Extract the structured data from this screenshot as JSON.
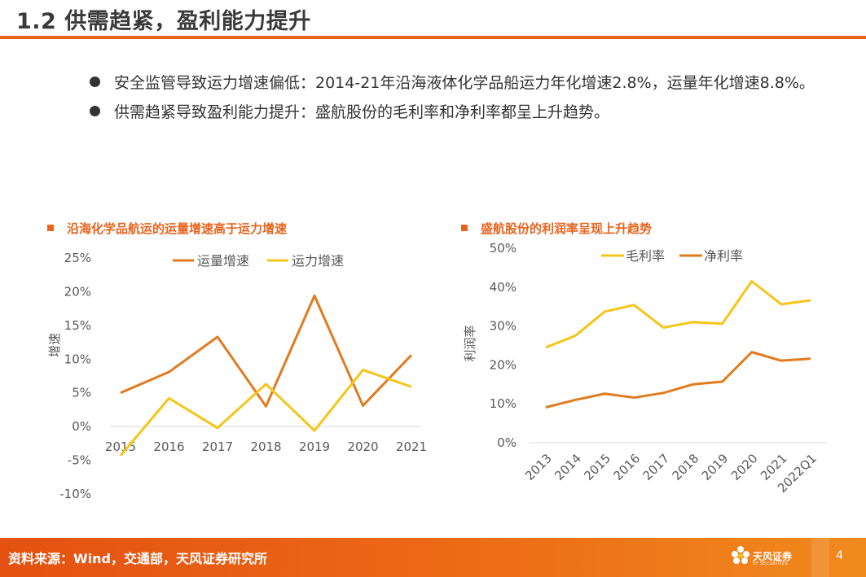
{
  "page": {
    "title": "1.2 供需趋紧，盈利能力提升",
    "bullets": [
      "安全监管导致运力增速偏低：2014-21年沿海液体化学品船运力年化增速2.8%，运量年化增速8.8%。",
      "供需趋紧导致盈利能力提升：盛航股份的毛利率和净利率都呈上升趋势。"
    ],
    "source": "资料来源：Wind，交通部，天风证券研究所",
    "page_number": "4",
    "logo_name": "天风证券",
    "logo_sub": "TF SECURITIES"
  },
  "chart_data": [
    {
      "type": "line",
      "title": "沿海化学品航运的运量增速高于运力增速",
      "categories": [
        "2015",
        "2016",
        "2017",
        "2018",
        "2019",
        "2020",
        "2021"
      ],
      "series": [
        {
          "name": "运量增速",
          "color": "#e07b1e",
          "values": [
            5.0,
            8.1,
            13.3,
            3.0,
            19.4,
            3.1,
            10.6
          ]
        },
        {
          "name": "运力增速",
          "color": "#f5c518",
          "values": [
            -4.3,
            4.2,
            -0.2,
            6.3,
            -0.6,
            8.4,
            5.9
          ]
        }
      ],
      "ylabel": "增速",
      "ylim": [
        -10,
        25
      ],
      "yticks": [
        "25%",
        "20%",
        "15%",
        "10%",
        "5%",
        "0%",
        "-5%",
        "-10%"
      ]
    },
    {
      "type": "line",
      "title": "盛航股份的利润率呈现上升趋势",
      "categories": [
        "2013",
        "2014",
        "2015",
        "2016",
        "2017",
        "2018",
        "2019",
        "2020",
        "2021",
        "2022Q1"
      ],
      "series": [
        {
          "name": "毛利率",
          "color": "#f5c518",
          "values": [
            24.5,
            27.5,
            33.7,
            35.4,
            29.6,
            31.0,
            30.6,
            41.5,
            35.6,
            36.6
          ]
        },
        {
          "name": "净利率",
          "color": "#e07b1e",
          "values": [
            9.1,
            11.0,
            12.6,
            11.6,
            12.8,
            15.0,
            15.7,
            23.3,
            21.1,
            21.6
          ]
        }
      ],
      "ylabel": "利润率",
      "ylim": [
        0,
        50
      ],
      "yticks": [
        "50%",
        "40%",
        "30%",
        "20%",
        "10%",
        "0%"
      ]
    }
  ],
  "colors": {
    "accent": "#e8631d"
  }
}
